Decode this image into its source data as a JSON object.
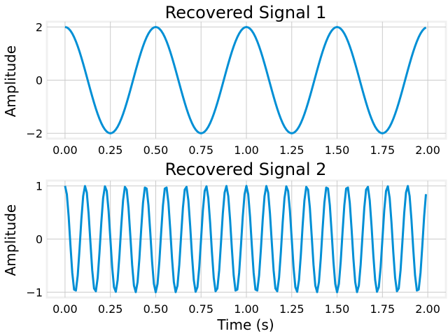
{
  "chart_data": [
    {
      "type": "line",
      "title": "Recovered Signal 1",
      "xlabel": "",
      "ylabel": "Amplitude",
      "xlim": [
        -0.1,
        2.1
      ],
      "ylim": [
        -2.2,
        2.2
      ],
      "xticks": [
        "0.00",
        "0.25",
        "0.50",
        "0.75",
        "1.00",
        "1.25",
        "1.50",
        "1.75",
        "2.00"
      ],
      "yticks": [
        "−2",
        "0",
        "2"
      ],
      "grid": true,
      "series": [
        {
          "color": "#008fd5",
          "amplitude": 2,
          "frequency_hz": 2,
          "waveform": "cosine",
          "x_start": 0,
          "x_end": 1.99,
          "x_step": 0.01
        }
      ]
    },
    {
      "type": "line",
      "title": "Recovered Signal 2",
      "xlabel": "Time (s)",
      "ylabel": "Amplitude",
      "xlim": [
        -0.1,
        2.1
      ],
      "ylim": [
        -1.1,
        1.1
      ],
      "xticks": [
        "0.00",
        "0.25",
        "0.50",
        "0.75",
        "1.00",
        "1.25",
        "1.50",
        "1.75",
        "2.00"
      ],
      "yticks": [
        "−1",
        "0",
        "1"
      ],
      "grid": true,
      "series": [
        {
          "color": "#008fd5",
          "amplitude": 1,
          "frequency_hz": 9,
          "waveform": "cosine",
          "x_start": 0,
          "x_end": 1.99,
          "x_step": 0.01
        }
      ]
    }
  ]
}
